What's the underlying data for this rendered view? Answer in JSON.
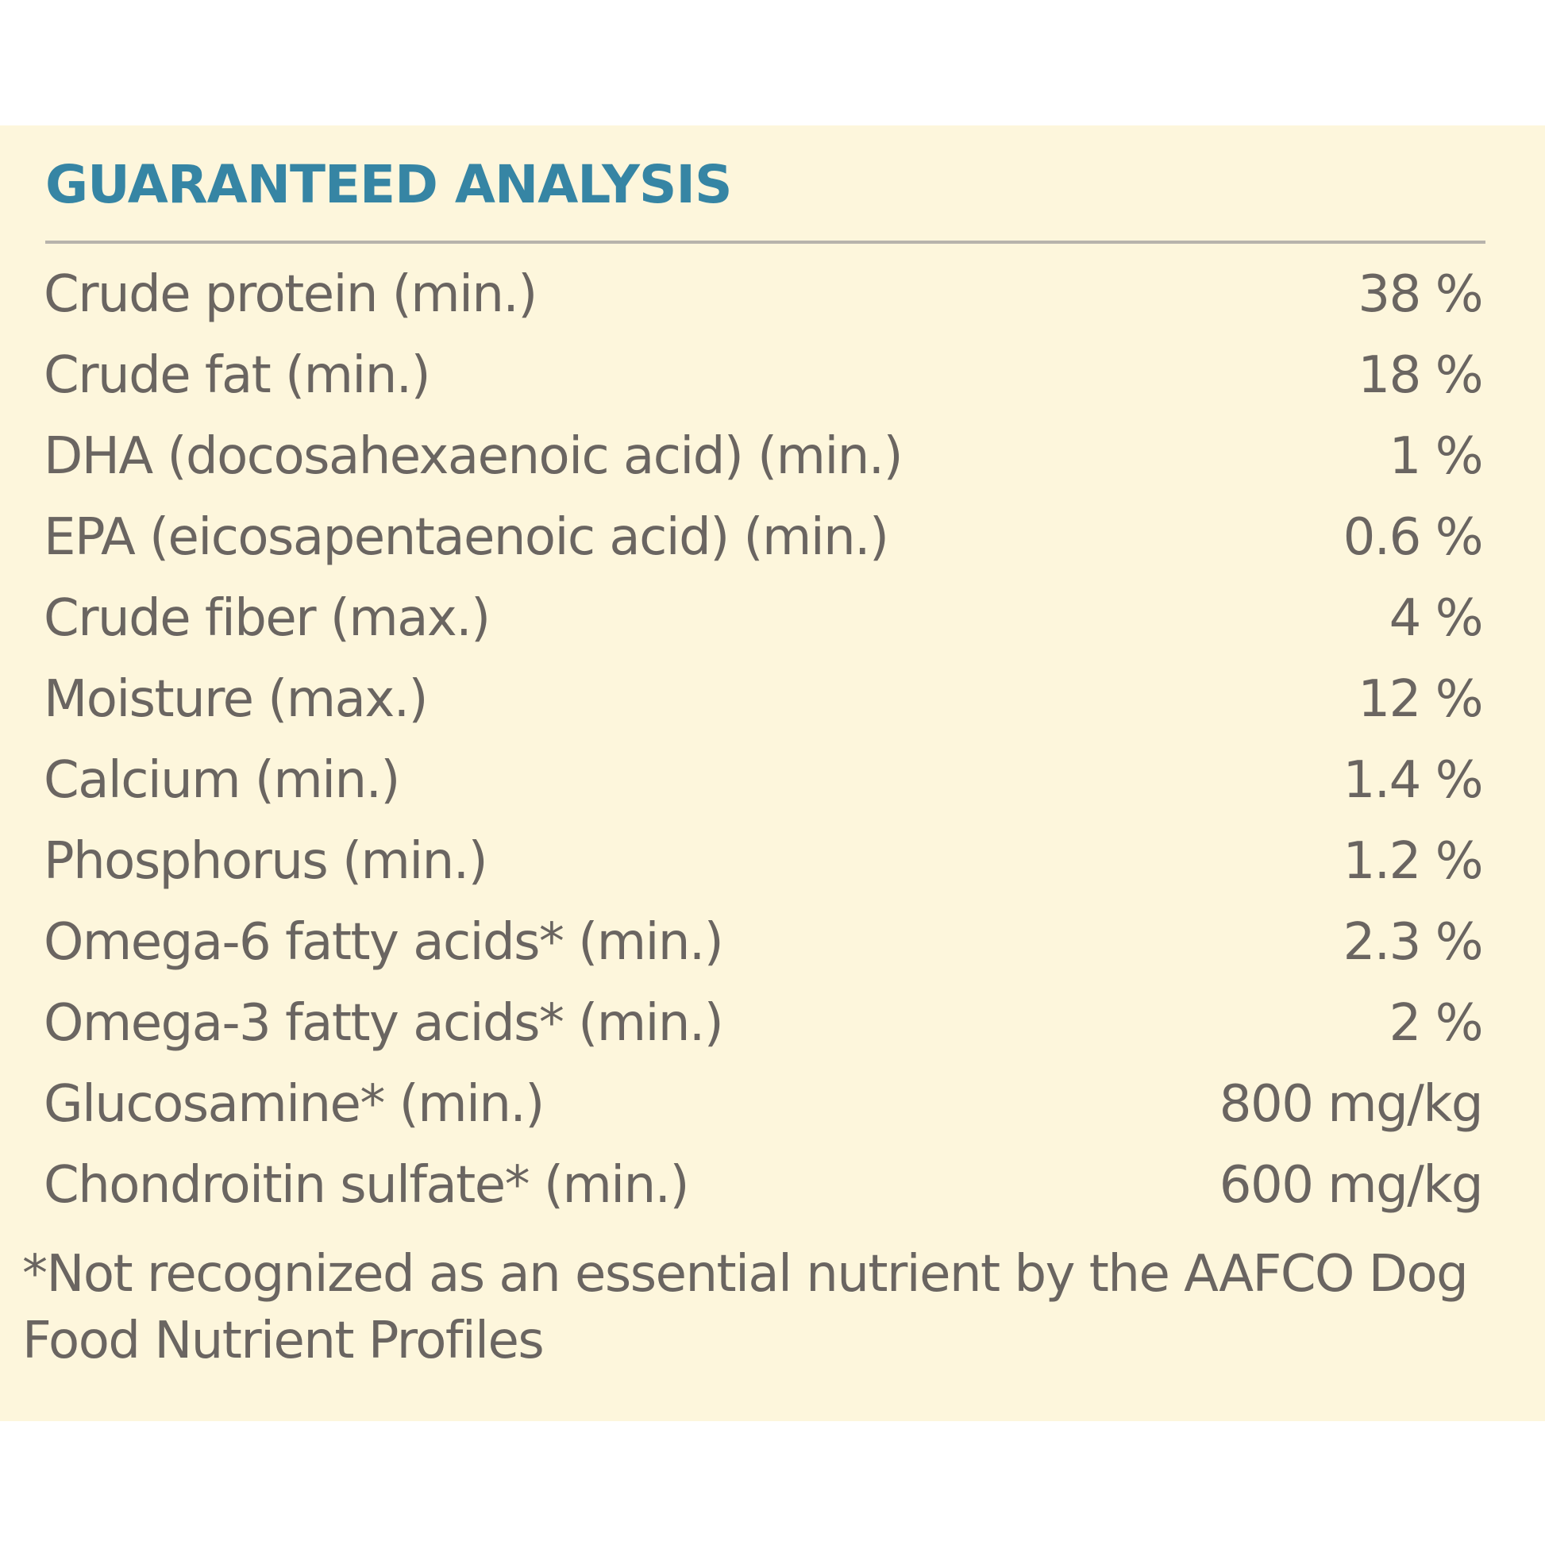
{
  "heading": "GUARANTEED ANALYSIS",
  "rows": [
    {
      "label": "Crude protein (min.)",
      "value": "38 %"
    },
    {
      "label": "Crude fat (min.)",
      "value": "18 %"
    },
    {
      "label": "DHA (docosahexaenoic acid) (min.)",
      "value": "1 %"
    },
    {
      "label": "EPA (eicosapentaenoic acid) (min.)",
      "value": "0.6 %"
    },
    {
      "label": "Crude fiber (max.)",
      "value": "4 %"
    },
    {
      "label": "Moisture (max.)",
      "value": "12 %"
    },
    {
      "label": "Calcium (min.)",
      "value": "1.4 %"
    },
    {
      "label": "Phosphorus (min.)",
      "value": "1.2 %"
    },
    {
      "label": "Omega-6 fatty acids* (min.)",
      "value": "2.3 %"
    },
    {
      "label": "Omega-3 fatty acids* (min.)",
      "value": "2 %"
    },
    {
      "label": "Glucosamine* (min.)",
      "value": "800 mg/kg"
    },
    {
      "label": "Chondroitin sulfate* (min.)",
      "value": "600 mg/kg"
    }
  ],
  "footnote": "*Not recognized as an essential nutrient by the AAFCO Dog Food Nutrient Profiles",
  "colors": {
    "heading": "#3685a4",
    "text": "#6a6561",
    "panel_background": "#fdf6dc",
    "rule": "#b7b3ac"
  }
}
